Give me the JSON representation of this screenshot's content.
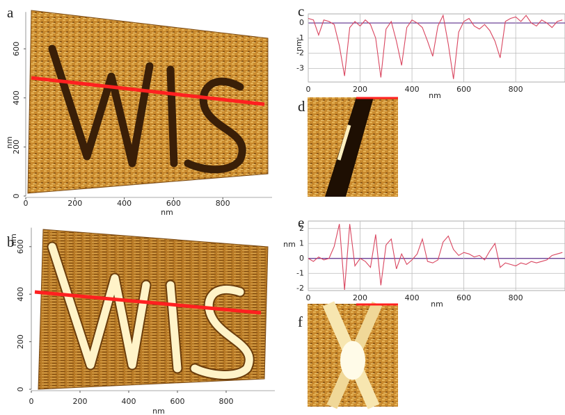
{
  "chart_data": [
    {
      "type": "surface",
      "label": "a",
      "xlabel": "nm",
      "ylabel": "nm",
      "xlim": [
        0,
        1000
      ],
      "xticks": [
        0,
        200,
        400,
        600,
        800
      ],
      "ylim": [
        0,
        750
      ],
      "yticks": [
        0,
        200,
        400,
        600
      ]
    },
    {
      "type": "surface",
      "label": "b",
      "xlabel": "nm",
      "ylabel": "nm",
      "xlim": [
        0,
        1000
      ],
      "xticks": [
        0,
        200,
        400,
        600,
        800
      ],
      "ylim": [
        0,
        680
      ],
      "yticks": [
        0,
        200,
        400,
        600
      ]
    },
    {
      "type": "line",
      "label": "c",
      "xlabel": "nm",
      "ylabel": "nm",
      "grid": true,
      "xlim": [
        0,
        990
      ],
      "xticks": [
        0,
        200,
        400,
        600,
        800
      ],
      "ylim": [
        -3.9,
        0.6
      ],
      "yticks": [
        0,
        -1,
        -2,
        -3
      ],
      "x": [
        0,
        20,
        40,
        60,
        80,
        100,
        120,
        140,
        160,
        180,
        200,
        220,
        240,
        260,
        280,
        300,
        320,
        340,
        360,
        380,
        400,
        420,
        440,
        460,
        480,
        500,
        520,
        540,
        560,
        580,
        600,
        620,
        640,
        660,
        680,
        700,
        720,
        740,
        760,
        780,
        800,
        820,
        840,
        860,
        880,
        900,
        920,
        940,
        960,
        980
      ],
      "series": [
        {
          "color": "#d9455f",
          "values": [
            0.3,
            0.2,
            -0.8,
            0.2,
            0.1,
            -0.1,
            -1.5,
            -3.5,
            -0.3,
            0.1,
            -0.2,
            0.2,
            -0.1,
            -1.0,
            -3.6,
            -0.4,
            0.1,
            -1.2,
            -2.8,
            -0.3,
            0.2,
            0.0,
            -0.3,
            -1.2,
            -2.2,
            -0.2,
            0.5,
            -1.4,
            -3.7,
            -0.6,
            0.1,
            0.3,
            -0.2,
            -0.4,
            -0.1,
            -0.5,
            -1.2,
            -2.3,
            0.1,
            0.3,
            0.4,
            0.1,
            0.5,
            0.0,
            -0.2,
            0.2,
            0.0,
            -0.3,
            0.1,
            0.2
          ]
        }
      ]
    },
    {
      "type": "image",
      "label": "d"
    },
    {
      "type": "line",
      "label": "e",
      "xlabel": "nm",
      "ylabel": "nm",
      "grid": true,
      "xlim": [
        0,
        990
      ],
      "xticks": [
        0,
        200,
        400,
        600,
        800
      ],
      "ylim": [
        -2.15,
        2.5
      ],
      "yticks": [
        2,
        1,
        0,
        -1,
        -2
      ],
      "x": [
        0,
        20,
        40,
        60,
        80,
        100,
        120,
        140,
        160,
        180,
        200,
        220,
        240,
        260,
        280,
        300,
        320,
        340,
        360,
        380,
        400,
        420,
        440,
        460,
        480,
        500,
        520,
        540,
        560,
        580,
        600,
        620,
        640,
        660,
        680,
        700,
        720,
        740,
        760,
        780,
        800,
        820,
        840,
        860,
        880,
        900,
        920,
        940,
        960,
        980
      ],
      "series": [
        {
          "color": "#d9455f",
          "values": [
            0.0,
            -0.2,
            0.1,
            -0.1,
            0.0,
            0.8,
            2.3,
            -2.1,
            2.3,
            -0.5,
            0.0,
            -0.2,
            -0.6,
            1.6,
            -1.8,
            0.9,
            1.3,
            -0.7,
            0.3,
            -0.4,
            -0.1,
            0.3,
            1.3,
            -0.2,
            -0.3,
            -0.1,
            1.1,
            1.5,
            0.6,
            0.2,
            0.4,
            0.3,
            0.1,
            0.2,
            -0.1,
            0.5,
            1.0,
            -0.6,
            -0.3,
            -0.4,
            -0.5,
            -0.3,
            -0.4,
            -0.2,
            -0.3,
            -0.2,
            -0.1,
            0.2,
            0.3,
            0.4
          ]
        }
      ]
    },
    {
      "type": "image",
      "label": "f"
    }
  ]
}
